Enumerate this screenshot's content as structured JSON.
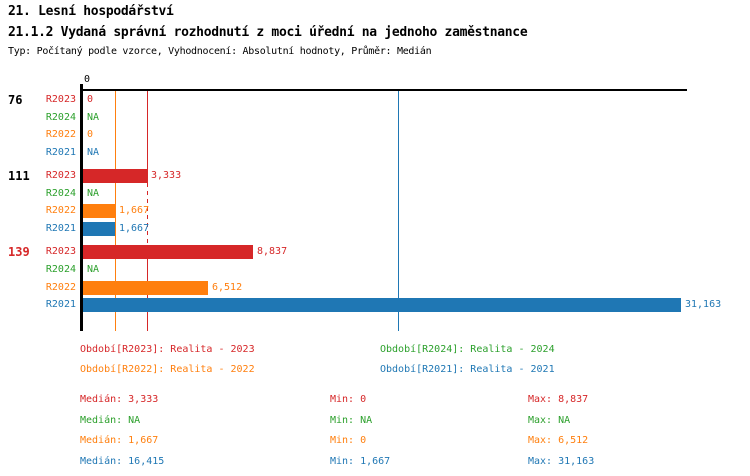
{
  "header": {
    "title": "21. Lesní hospodářství",
    "subtitle": "21.1.2 Vydaná správní rozhodnutí z moci úřední na jednoho zaměstnance",
    "meta": "Typ: Počítaný podle vzorce, Vyhodnocení: Absolutní hodnoty, Průměr: Medián"
  },
  "colors": {
    "R2023": "#d62728",
    "R2024": "#2ca02c",
    "R2022": "#ff7f0e",
    "R2021": "#1f77b4",
    "axis": "#000000"
  },
  "chart_data": {
    "type": "bar",
    "orientation": "horizontal",
    "x_axis": {
      "tick_label": "0",
      "xlim": [
        0,
        32
      ]
    },
    "series_order": [
      "R2023",
      "R2024",
      "R2022",
      "R2021"
    ],
    "groups": [
      {
        "label": "76",
        "label_color": "#000000",
        "rows": [
          {
            "series": "R2023",
            "value": 0,
            "display": "0"
          },
          {
            "series": "R2024",
            "value": null,
            "display": "NA"
          },
          {
            "series": "R2022",
            "value": 0,
            "display": "0"
          },
          {
            "series": "R2021",
            "value": null,
            "display": "NA"
          }
        ]
      },
      {
        "label": "111",
        "label_color": "#000000",
        "rows": [
          {
            "series": "R2023",
            "value": 3.333,
            "display": "3,333"
          },
          {
            "series": "R2024",
            "value": null,
            "display": "NA"
          },
          {
            "series": "R2022",
            "value": 1.667,
            "display": "1,667"
          },
          {
            "series": "R2021",
            "value": 1.667,
            "display": "1,667"
          }
        ]
      },
      {
        "label": "139",
        "label_color": "#d62728",
        "rows": [
          {
            "series": "R2023",
            "value": 8.837,
            "display": "8,837"
          },
          {
            "series": "R2024",
            "value": null,
            "display": "NA"
          },
          {
            "series": "R2022",
            "value": 6.512,
            "display": "6,512"
          },
          {
            "series": "R2021",
            "value": 31.163,
            "display": "31,163"
          }
        ]
      }
    ],
    "median_lines": [
      {
        "series": "R2023",
        "value": 3.333
      },
      {
        "series": "R2022",
        "value": 1.667
      },
      {
        "series": "R2021",
        "value": 16.415
      }
    ]
  },
  "legend": {
    "items": [
      {
        "series": "R2023",
        "label": "Období[R2023]: Realita - 2023"
      },
      {
        "series": "R2024",
        "label": "Období[R2024]: Realita - 2024"
      },
      {
        "series": "R2022",
        "label": "Období[R2022]: Realita - 2022"
      },
      {
        "series": "R2021",
        "label": "Období[R2021]: Realita - 2021"
      }
    ]
  },
  "stats": {
    "labels": {
      "median": "Medián:",
      "min": "Min:",
      "max": "Max:"
    },
    "rows": [
      {
        "series": "R2023",
        "median": "3,333",
        "min": "0",
        "max": "8,837"
      },
      {
        "series": "R2024",
        "median": "NA",
        "min": "NA",
        "max": "NA"
      },
      {
        "series": "R2022",
        "median": "1,667",
        "min": "0",
        "max": "6,512"
      },
      {
        "series": "R2021",
        "median": "16,415",
        "min": "1,667",
        "max": "31,163"
      }
    ]
  }
}
